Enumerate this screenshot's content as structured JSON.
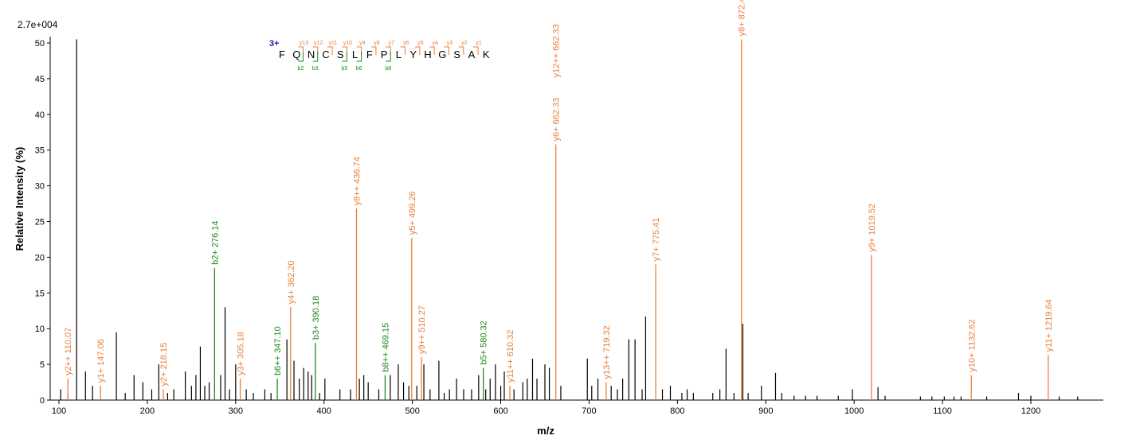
{
  "chart_data": {
    "type": "bar",
    "scale_label": "2.7e+004",
    "xlabel": "m/z",
    "ylabel": "Relative   Intensity (%)",
    "xlim": [
      100,
      1280
    ],
    "ylim": [
      0,
      50
    ],
    "x_ticks": [
      100,
      200,
      300,
      400,
      500,
      600,
      700,
      800,
      900,
      1000,
      1100,
      1200
    ],
    "y_ticks": [
      0,
      5,
      10,
      15,
      20,
      25,
      30,
      35,
      40,
      45,
      50
    ],
    "colors": {
      "y_ion": "#e8803a",
      "b_ion": "#1e8a1e",
      "peak": "#000000",
      "charge": "#1a1a9c"
    },
    "annotated_peaks": [
      {
        "mz": 110.07,
        "intensity": 3,
        "label": "y2++ 110.07",
        "ion": "y"
      },
      {
        "mz": 147.06,
        "intensity": 2,
        "label": "y1+ 147.06",
        "ion": "y"
      },
      {
        "mz": 218.15,
        "intensity": 1.5,
        "label": "y2+ 218.15",
        "ion": "y"
      },
      {
        "mz": 276.14,
        "intensity": 18.5,
        "label": "b2+ 276.14",
        "ion": "b"
      },
      {
        "mz": 305.18,
        "intensity": 3,
        "label": "y3+ 305.18",
        "ion": "y"
      },
      {
        "mz": 347.1,
        "intensity": 3,
        "label": "b6++ 347.10",
        "ion": "b"
      },
      {
        "mz": 362.2,
        "intensity": 13,
        "label": "y4+ 362.20",
        "ion": "y"
      },
      {
        "mz": 390.18,
        "intensity": 8,
        "label": "b3+ 390.18",
        "ion": "b"
      },
      {
        "mz": 436.74,
        "intensity": 26.8,
        "label": "y8++ 436.74",
        "ion": "y"
      },
      {
        "mz": 469.15,
        "intensity": 3.5,
        "label": "b8++ 469.15",
        "ion": "b"
      },
      {
        "mz": 499.26,
        "intensity": 22.7,
        "label": "y5+ 499.26",
        "ion": "y"
      },
      {
        "mz": 510.27,
        "intensity": 6,
        "label": "y9++ 510.27",
        "ion": "y"
      },
      {
        "mz": 580.32,
        "intensity": 4.5,
        "label": "b5+ 580.32",
        "ion": "b"
      },
      {
        "mz": 610.32,
        "intensity": 2,
        "label": "y11++ 610.32",
        "ion": "y"
      },
      {
        "mz": 662.33,
        "intensity": 35.8,
        "label": "y6+ 662.33",
        "ion": "y"
      },
      {
        "mz": 662.33,
        "intensity": 35.8,
        "label": "y12++ 662.33",
        "ion": "y"
      },
      {
        "mz": 719.32,
        "intensity": 2.5,
        "label": "y13++ 719.32",
        "ion": "y"
      },
      {
        "mz": 775.41,
        "intensity": 19,
        "label": "y7+ 775.41",
        "ion": "y"
      },
      {
        "mz": 872.46,
        "intensity": 50.5,
        "label": "y8+ 872.46",
        "ion": "y"
      },
      {
        "mz": 1019.52,
        "intensity": 20.3,
        "label": "y9+ 1019.52",
        "ion": "y"
      },
      {
        "mz": 1132.62,
        "intensity": 3.5,
        "label": "y10+ 1132.62",
        "ion": "y"
      },
      {
        "mz": 1219.64,
        "intensity": 6.3,
        "label": "y11+ 1219.64",
        "ion": "y"
      }
    ],
    "other_peaks": [
      [
        102,
        1.5
      ],
      [
        110,
        1
      ],
      [
        120,
        50.5
      ],
      [
        130,
        4
      ],
      [
        138,
        2
      ],
      [
        165,
        9.5
      ],
      [
        175,
        1
      ],
      [
        185,
        3.5
      ],
      [
        195,
        2.5
      ],
      [
        205,
        1.5
      ],
      [
        213,
        5
      ],
      [
        223,
        1
      ],
      [
        230,
        1.5
      ],
      [
        243,
        4
      ],
      [
        250,
        2
      ],
      [
        255,
        3.5
      ],
      [
        260,
        7.5
      ],
      [
        265,
        2
      ],
      [
        270,
        2.5
      ],
      [
        283,
        3.5
      ],
      [
        288,
        13
      ],
      [
        293,
        1.5
      ],
      [
        300,
        5
      ],
      [
        312,
        1.5
      ],
      [
        320,
        1
      ],
      [
        333,
        1.5
      ],
      [
        340,
        1
      ],
      [
        358,
        8.5
      ],
      [
        366,
        5.5
      ],
      [
        372,
        3
      ],
      [
        377,
        4.5
      ],
      [
        382,
        4
      ],
      [
        386,
        3.5
      ],
      [
        395,
        1
      ],
      [
        401,
        3
      ],
      [
        418,
        1.5
      ],
      [
        430,
        1.5
      ],
      [
        440,
        3
      ],
      [
        445,
        3.5
      ],
      [
        450,
        2.5
      ],
      [
        462,
        1.5
      ],
      [
        475,
        3.5
      ],
      [
        484,
        5
      ],
      [
        490,
        2.5
      ],
      [
        496,
        2
      ],
      [
        505,
        2
      ],
      [
        513,
        5
      ],
      [
        520,
        1.5
      ],
      [
        530,
        5.5
      ],
      [
        536,
        1
      ],
      [
        542,
        1.5
      ],
      [
        550,
        3
      ],
      [
        558,
        1.5
      ],
      [
        567,
        1.5
      ],
      [
        575,
        3.5
      ],
      [
        583,
        1.5
      ],
      [
        588,
        3
      ],
      [
        594,
        5
      ],
      [
        600,
        2
      ],
      [
        604,
        4
      ],
      [
        615,
        1.5
      ],
      [
        625,
        2.5
      ],
      [
        630,
        3
      ],
      [
        636,
        5.8
      ],
      [
        641,
        3
      ],
      [
        650,
        5
      ],
      [
        655,
        4.5
      ],
      [
        668,
        2
      ],
      [
        698,
        5.8
      ],
      [
        703,
        2
      ],
      [
        710,
        3
      ],
      [
        725,
        2
      ],
      [
        732,
        1.5
      ],
      [
        738,
        3
      ],
      [
        745,
        8.5
      ],
      [
        752,
        8.5
      ],
      [
        760,
        1.5
      ],
      [
        764,
        11.7
      ],
      [
        783,
        1.5
      ],
      [
        792,
        2
      ],
      [
        805,
        1
      ],
      [
        811,
        1.5
      ],
      [
        818,
        1
      ],
      [
        840,
        1
      ],
      [
        848,
        1.5
      ],
      [
        855,
        7.2
      ],
      [
        864,
        1
      ],
      [
        874,
        10.7
      ],
      [
        880,
        1
      ],
      [
        895,
        2
      ],
      [
        911,
        3.8
      ],
      [
        918,
        1
      ],
      [
        932,
        0.6
      ],
      [
        945,
        0.6
      ],
      [
        958,
        0.6
      ],
      [
        982,
        0.6
      ],
      [
        998,
        1.5
      ],
      [
        1027,
        1.8
      ],
      [
        1035,
        0.6
      ],
      [
        1075,
        0.5
      ],
      [
        1088,
        0.5
      ],
      [
        1102,
        0.5
      ],
      [
        1113,
        0.5
      ],
      [
        1121,
        0.5
      ],
      [
        1150,
        0.5
      ],
      [
        1186,
        1
      ],
      [
        1200,
        0.6
      ],
      [
        1232,
        0.5
      ],
      [
        1253,
        0.5
      ]
    ],
    "sequence": {
      "charge": "3+",
      "residues": [
        "F",
        "Q",
        "N",
        "C",
        "S",
        "L",
        "F",
        "P",
        "L",
        "Y",
        "H",
        "G",
        "S",
        "A",
        "K"
      ],
      "y_labels": [
        "y13",
        "y12",
        "y11",
        "y10",
        "y9",
        "y8",
        "y7",
        "y6",
        "y5",
        "y4",
        "y3",
        "y2",
        "y1"
      ],
      "b_labels": [
        "b2",
        "b3",
        "b5",
        "b6",
        "b8"
      ]
    }
  }
}
